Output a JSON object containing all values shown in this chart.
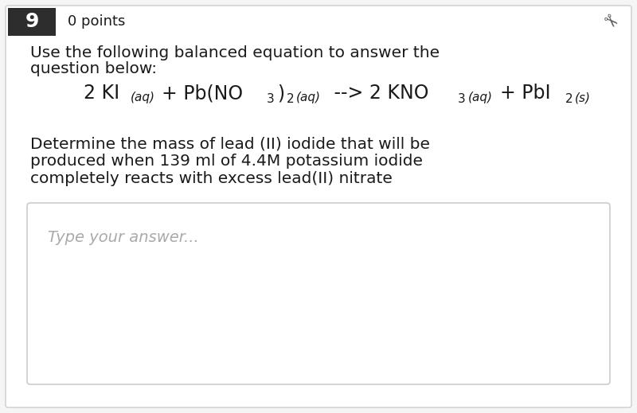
{
  "bg_color": "#f5f5f5",
  "card_color": "#ffffff",
  "question_number": "9",
  "points_text": "0 points",
  "intro_line1": "Use the following balanced equation to answer the",
  "intro_line2": "question below:",
  "equation_parts": [
    {
      "text": "2 KI",
      "style": "normal",
      "size": 17
    },
    {
      "text": "(aq)",
      "style": "italic_small",
      "size": 11
    },
    {
      "text": "+ Pb(NO",
      "style": "normal",
      "size": 17
    },
    {
      "text": "3",
      "style": "sub",
      "size": 11
    },
    {
      "text": ")",
      "style": "normal",
      "size": 17
    },
    {
      "text": "2",
      "style": "sub",
      "size": 11
    },
    {
      "text": "(aq)",
      "style": "italic_small",
      "size": 11
    },
    {
      "text": " --> 2 KNO",
      "style": "normal",
      "size": 17
    },
    {
      "text": "3",
      "style": "sub",
      "size": 11
    },
    {
      "text": "(aq)",
      "style": "italic_small",
      "size": 11
    },
    {
      "text": "+ PbI",
      "style": "normal",
      "size": 17
    },
    {
      "text": "2",
      "style": "sub",
      "size": 11
    },
    {
      "text": "(s)",
      "style": "italic_small",
      "size": 11
    }
  ],
  "question_line1": "Determine the mass of lead (II) iodide that will be",
  "question_line2": "produced when 139 ml of 4.4M potassium iodide",
  "question_line3": "completely reacts with excess lead(II) nitrate",
  "answer_placeholder": "Type your answer...",
  "header_bg": "#2d2d2d",
  "header_text_color": "#ffffff",
  "body_text_color": "#1a1a1a",
  "placeholder_color": "#aaaaaa",
  "border_color": "#cccccc",
  "pin_color": "#555555"
}
